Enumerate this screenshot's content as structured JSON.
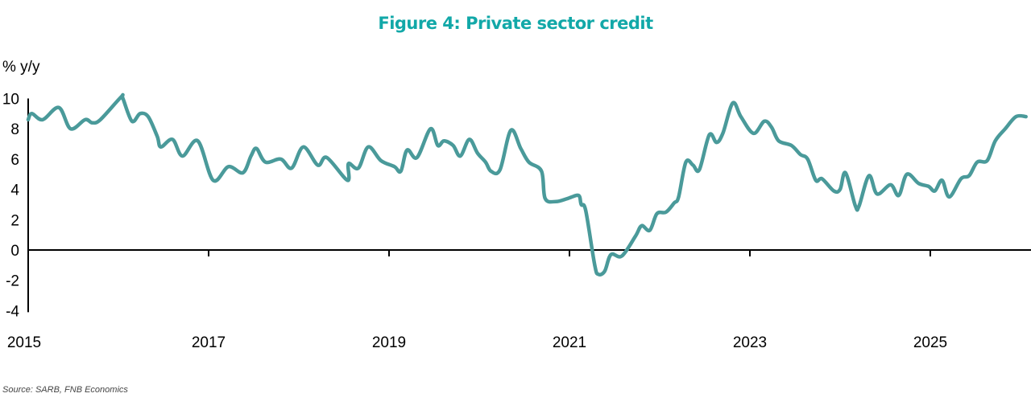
{
  "chart_data": {
    "type": "line",
    "title": "Figure 4: Private sector credit",
    "ylabel": "% y/y",
    "xlabel": "",
    "source": "Source: SARB, FNB Economics",
    "ylim": [
      -4,
      10
    ],
    "xlim": [
      2015,
      2026.1
    ],
    "yticks": [
      10,
      8,
      6,
      4,
      2,
      0,
      -2,
      -4
    ],
    "xticks": [
      2015,
      2017,
      2019,
      2021,
      2023,
      2025
    ],
    "grid": false,
    "legend": "none",
    "line_color": "#4a9a9a",
    "title_color": "#12a8a8",
    "series": [
      {
        "name": "Private sector credit",
        "x": [
          2015.0,
          2015.04,
          2015.16,
          2015.34,
          2015.47,
          2015.63,
          2015.71,
          2015.8,
          2016.03,
          2016.05,
          2016.15,
          2016.24,
          2016.33,
          2016.43,
          2016.47,
          2016.6,
          2016.71,
          2016.88,
          2017.05,
          2017.22,
          2017.38,
          2017.47,
          2017.53,
          2017.63,
          2017.8,
          2017.92,
          2018.05,
          2018.21,
          2018.31,
          2018.54,
          2018.55,
          2018.66,
          2018.77,
          2018.91,
          2019.06,
          2019.13,
          2019.2,
          2019.31,
          2019.46,
          2019.54,
          2019.61,
          2019.71,
          2019.79,
          2019.89,
          2019.98,
          2020.07,
          2020.13,
          2020.23,
          2020.35,
          2020.46,
          2020.55,
          2020.69,
          2020.73,
          2020.85,
          2020.98,
          2021.1,
          2021.13,
          2021.18,
          2021.28,
          2021.32,
          2021.39,
          2021.46,
          2021.58,
          2021.73,
          2021.8,
          2021.89,
          2021.97,
          2022.07,
          2022.16,
          2022.21,
          2022.29,
          2022.37,
          2022.44,
          2022.55,
          2022.63,
          2022.7,
          2022.81,
          2022.9,
          2023.04,
          2023.16,
          2023.24,
          2023.32,
          2023.46,
          2023.56,
          2023.64,
          2023.73,
          2023.8,
          2023.93,
          2024.0,
          2024.06,
          2024.17,
          2024.21,
          2024.32,
          2024.41,
          2024.56,
          2024.65,
          2024.74,
          2024.87,
          2024.98,
          2025.05,
          2025.13,
          2025.21,
          2025.34,
          2025.43,
          2025.52,
          2025.63,
          2025.72,
          2025.83,
          2025.95,
          2026.06
        ],
        "y": [
          8.6,
          9.0,
          8.6,
          9.4,
          8.0,
          8.6,
          8.4,
          8.6,
          10.1,
          10.0,
          8.5,
          9.0,
          8.8,
          7.5,
          6.8,
          7.3,
          6.2,
          7.2,
          4.6,
          5.5,
          5.1,
          6.2,
          6.7,
          5.8,
          6.0,
          5.4,
          6.8,
          5.6,
          6.1,
          4.6,
          5.7,
          5.4,
          6.8,
          5.9,
          5.5,
          5.2,
          6.6,
          6.1,
          8.0,
          6.9,
          7.2,
          6.9,
          6.2,
          7.3,
          6.4,
          5.8,
          5.2,
          5.3,
          7.9,
          6.7,
          5.8,
          5.2,
          3.4,
          3.2,
          3.4,
          3.6,
          3.0,
          2.6,
          -1.0,
          -1.6,
          -1.4,
          -0.3,
          -0.4,
          0.9,
          1.6,
          1.3,
          2.4,
          2.5,
          3.1,
          3.5,
          5.8,
          5.6,
          5.3,
          7.6,
          7.1,
          7.7,
          9.7,
          8.8,
          7.7,
          8.5,
          8.1,
          7.2,
          6.9,
          6.3,
          6.0,
          4.6,
          4.7,
          3.9,
          4.0,
          5.1,
          2.9,
          2.9,
          4.9,
          3.7,
          4.3,
          3.6,
          5.0,
          4.4,
          4.2,
          3.9,
          4.6,
          3.5,
          4.7,
          4.9,
          5.8,
          5.9,
          7.2,
          8.0,
          8.8,
          8.8
        ]
      }
    ]
  }
}
